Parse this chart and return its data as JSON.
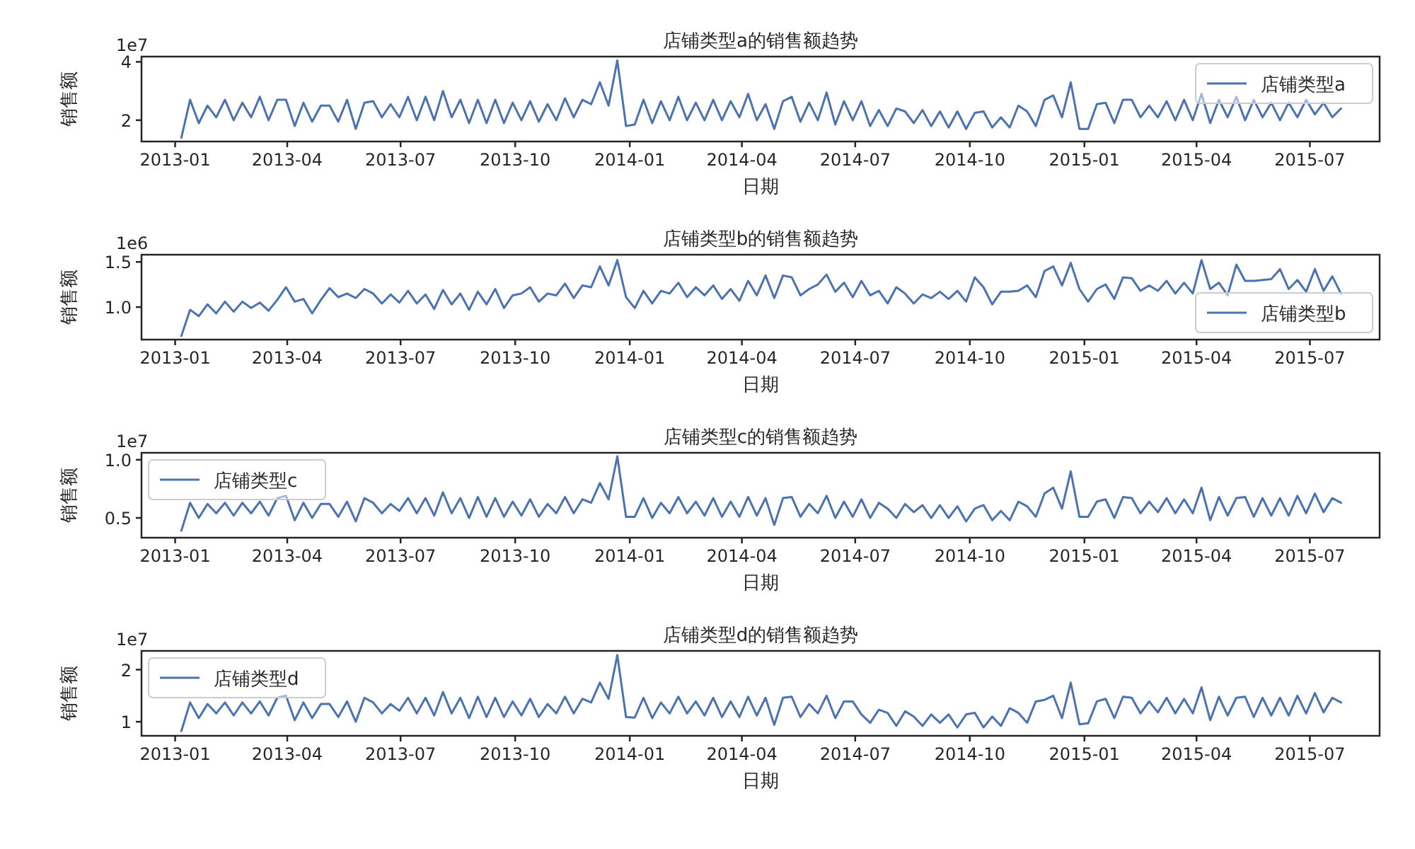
{
  "chart_data": [
    {
      "type": "line",
      "title": "店铺类型a的销售额趋势",
      "xlabel": "日期",
      "ylabel": "销售额",
      "annotations": [
        "1e7"
      ],
      "legend": "top right",
      "x": [
        "2013-01-06",
        "2013-01-13",
        "2013-01-20",
        "2013-01-27",
        "2013-02-03",
        "2013-02-10",
        "2013-02-17",
        "2013-02-24",
        "2013-03-03",
        "2013-03-10",
        "2013-03-17",
        "2013-03-24",
        "2013-03-31",
        "2013-04-07",
        "2013-04-14",
        "2013-04-21",
        "2013-04-28",
        "2013-05-05",
        "2013-05-12",
        "2013-05-19",
        "2013-05-26",
        "2013-06-02",
        "2013-06-09",
        "2013-06-16",
        "2013-06-23",
        "2013-06-30",
        "2013-07-07",
        "2013-07-14",
        "2013-07-21",
        "2013-07-28",
        "2013-08-04",
        "2013-08-11",
        "2013-08-18",
        "2013-08-25",
        "2013-09-01",
        "2013-09-08",
        "2013-09-15",
        "2013-09-22",
        "2013-09-29",
        "2013-10-06",
        "2013-10-13",
        "2013-10-20",
        "2013-10-27",
        "2013-11-03",
        "2013-11-10",
        "2013-11-17",
        "2013-11-24",
        "2013-12-01",
        "2013-12-08",
        "2013-12-15",
        "2013-12-22",
        "2013-12-29",
        "2014-01-05",
        "2014-01-12",
        "2014-01-19",
        "2014-01-26",
        "2014-02-02",
        "2014-02-09",
        "2014-02-16",
        "2014-02-23",
        "2014-03-02",
        "2014-03-09",
        "2014-03-16",
        "2014-03-23",
        "2014-03-30",
        "2014-04-06",
        "2014-04-13",
        "2014-04-20",
        "2014-04-27",
        "2014-05-04",
        "2014-05-11",
        "2014-05-18",
        "2014-05-25",
        "2014-06-01",
        "2014-06-08",
        "2014-06-15",
        "2014-06-22",
        "2014-06-29",
        "2014-07-06",
        "2014-07-13",
        "2014-07-20",
        "2014-07-27",
        "2014-08-03",
        "2014-08-10",
        "2014-08-17",
        "2014-08-24",
        "2014-08-31",
        "2014-09-07",
        "2014-09-14",
        "2014-09-21",
        "2014-09-28",
        "2014-10-05",
        "2014-10-12",
        "2014-10-19",
        "2014-10-26",
        "2014-11-02",
        "2014-11-09",
        "2014-11-16",
        "2014-11-23",
        "2014-11-30",
        "2014-12-07",
        "2014-12-14",
        "2014-12-21",
        "2014-12-28",
        "2015-01-04",
        "2015-01-11",
        "2015-01-18",
        "2015-01-25",
        "2015-02-01",
        "2015-02-08",
        "2015-02-15",
        "2015-02-22",
        "2015-03-01",
        "2015-03-08",
        "2015-03-15",
        "2015-03-22",
        "2015-03-29",
        "2015-04-05",
        "2015-04-12",
        "2015-04-19",
        "2015-04-26",
        "2015-05-03",
        "2015-05-10",
        "2015-05-17",
        "2015-05-24",
        "2015-05-31",
        "2015-06-07",
        "2015-06-14",
        "2015-06-21",
        "2015-06-28",
        "2015-07-05",
        "2015-07-12",
        "2015-07-19",
        "2015-07-26"
      ],
      "xlim": [
        "2012-12-05",
        "2015-08-26"
      ],
      "xticks": [
        "2013-01",
        "2013-04",
        "2013-07",
        "2013-10",
        "2014-01",
        "2014-04",
        "2014-07",
        "2014-10",
        "2015-01",
        "2015-04",
        "2015-07"
      ],
      "ylim": [
        1.27,
        4.18
      ],
      "yticks": [
        2,
        4
      ],
      "series": [
        {
          "name": "店铺类型a",
          "color": "#4c72b0",
          "values": [
            1.4,
            2.7,
            1.9,
            2.5,
            2.1,
            2.7,
            2.0,
            2.6,
            2.1,
            2.8,
            2.0,
            2.7,
            2.7,
            1.8,
            2.6,
            1.95,
            2.5,
            2.5,
            1.95,
            2.7,
            1.7,
            2.6,
            2.65,
            2.1,
            2.55,
            2.1,
            2.8,
            2.0,
            2.8,
            2.0,
            3.0,
            2.1,
            2.7,
            1.9,
            2.7,
            1.9,
            2.7,
            1.9,
            2.6,
            2.0,
            2.65,
            1.95,
            2.55,
            2.0,
            2.75,
            2.1,
            2.7,
            2.55,
            3.3,
            2.5,
            4.05,
            1.8,
            1.85,
            2.7,
            1.9,
            2.65,
            2.0,
            2.8,
            2.0,
            2.6,
            2.0,
            2.7,
            2.0,
            2.65,
            2.1,
            2.9,
            2.0,
            2.55,
            1.7,
            2.65,
            2.8,
            1.95,
            2.6,
            2.0,
            2.95,
            1.85,
            2.65,
            2.0,
            2.65,
            1.8,
            2.35,
            1.8,
            2.4,
            2.3,
            1.9,
            2.35,
            1.8,
            2.3,
            1.75,
            2.3,
            1.7,
            2.25,
            2.3,
            1.75,
            2.1,
            1.75,
            2.5,
            2.3,
            1.8,
            2.7,
            2.85,
            2.1,
            3.3,
            1.7,
            1.7,
            2.55,
            2.6,
            1.9,
            2.7,
            2.7,
            2.1,
            2.5,
            2.1,
            2.65,
            2.0,
            2.7,
            2.0,
            2.9,
            1.9,
            2.7,
            2.1,
            2.8,
            2.0,
            2.7,
            2.1,
            2.6,
            2.0,
            2.6,
            2.1,
            2.7,
            2.2,
            2.6,
            2.1,
            2.4
          ]
        }
      ]
    },
    {
      "type": "line",
      "title": "店铺类型b的销售额趋势",
      "xlabel": "日期",
      "ylabel": "销售额",
      "annotations": [
        "1e6"
      ],
      "legend": "bottom right",
      "x": [
        "2013-01-06",
        "2013-01-13",
        "2013-01-20",
        "2013-01-27",
        "2013-02-03",
        "2013-02-10",
        "2013-02-17",
        "2013-02-24",
        "2013-03-03",
        "2013-03-10",
        "2013-03-17",
        "2013-03-24",
        "2013-03-31",
        "2013-04-07",
        "2013-04-14",
        "2013-04-21",
        "2013-04-28",
        "2013-05-05",
        "2013-05-12",
        "2013-05-19",
        "2013-05-26",
        "2013-06-02",
        "2013-06-09",
        "2013-06-16",
        "2013-06-23",
        "2013-06-30",
        "2013-07-07",
        "2013-07-14",
        "2013-07-21",
        "2013-07-28",
        "2013-08-04",
        "2013-08-11",
        "2013-08-18",
        "2013-08-25",
        "2013-09-01",
        "2013-09-08",
        "2013-09-15",
        "2013-09-22",
        "2013-09-29",
        "2013-10-06",
        "2013-10-13",
        "2013-10-20",
        "2013-10-27",
        "2013-11-03",
        "2013-11-10",
        "2013-11-17",
        "2013-11-24",
        "2013-12-01",
        "2013-12-08",
        "2013-12-15",
        "2013-12-22",
        "2013-12-29",
        "2014-01-05",
        "2014-01-12",
        "2014-01-19",
        "2014-01-26",
        "2014-02-02",
        "2014-02-09",
        "2014-02-16",
        "2014-02-23",
        "2014-03-02",
        "2014-03-09",
        "2014-03-16",
        "2014-03-23",
        "2014-03-30",
        "2014-04-06",
        "2014-04-13",
        "2014-04-20",
        "2014-04-27",
        "2014-05-04",
        "2014-05-11",
        "2014-05-18",
        "2014-05-25",
        "2014-06-01",
        "2014-06-08",
        "2014-06-15",
        "2014-06-22",
        "2014-06-29",
        "2014-07-06",
        "2014-07-13",
        "2014-07-20",
        "2014-07-27",
        "2014-08-03",
        "2014-08-10",
        "2014-08-17",
        "2014-08-24",
        "2014-08-31",
        "2014-09-07",
        "2014-09-14",
        "2014-09-21",
        "2014-09-28",
        "2014-10-05",
        "2014-10-12",
        "2014-10-19",
        "2014-10-26",
        "2014-11-02",
        "2014-11-09",
        "2014-11-16",
        "2014-11-23",
        "2014-11-30",
        "2014-12-07",
        "2014-12-14",
        "2014-12-21",
        "2014-12-28",
        "2015-01-04",
        "2015-01-11",
        "2015-01-18",
        "2015-01-25",
        "2015-02-01",
        "2015-02-08",
        "2015-02-15",
        "2015-02-22",
        "2015-03-01",
        "2015-03-08",
        "2015-03-15",
        "2015-03-22",
        "2015-03-29",
        "2015-04-05",
        "2015-04-12",
        "2015-04-19",
        "2015-04-26",
        "2015-05-03",
        "2015-05-10",
        "2015-05-17",
        "2015-05-24",
        "2015-05-31",
        "2015-06-07",
        "2015-06-14",
        "2015-06-21",
        "2015-06-28",
        "2015-07-05",
        "2015-07-12",
        "2015-07-19",
        "2015-07-26"
      ],
      "xlim": [
        "2012-12-05",
        "2015-08-26"
      ],
      "xticks": [
        "2013-01",
        "2013-04",
        "2013-07",
        "2013-10",
        "2014-01",
        "2014-04",
        "2014-07",
        "2014-10",
        "2015-01",
        "2015-04",
        "2015-07"
      ],
      "ylim": [
        0.64,
        1.58
      ],
      "yticks": [
        {
          "value": 1,
          "label": "1.0"
        },
        1.5
      ],
      "series": [
        {
          "name": "店铺类型b",
          "color": "#4c72b0",
          "values": [
            0.68,
            0.97,
            0.9,
            1.03,
            0.93,
            1.06,
            0.95,
            1.06,
            0.99,
            1.05,
            0.96,
            1.08,
            1.22,
            1.06,
            1.09,
            0.93,
            1.08,
            1.21,
            1.11,
            1.15,
            1.1,
            1.2,
            1.15,
            1.04,
            1.14,
            1.05,
            1.18,
            1.04,
            1.14,
            0.98,
            1.19,
            1.03,
            1.15,
            0.97,
            1.17,
            1.03,
            1.2,
            0.99,
            1.13,
            1.15,
            1.22,
            1.06,
            1.15,
            1.13,
            1.26,
            1.1,
            1.24,
            1.22,
            1.45,
            1.24,
            1.52,
            1.11,
            0.99,
            1.18,
            1.04,
            1.18,
            1.15,
            1.27,
            1.11,
            1.22,
            1.13,
            1.24,
            1.09,
            1.2,
            1.07,
            1.29,
            1.13,
            1.35,
            1.1,
            1.35,
            1.33,
            1.13,
            1.2,
            1.25,
            1.36,
            1.17,
            1.27,
            1.11,
            1.29,
            1.13,
            1.18,
            1.04,
            1.22,
            1.15,
            1.04,
            1.14,
            1.1,
            1.17,
            1.09,
            1.18,
            1.06,
            1.33,
            1.22,
            1.03,
            1.17,
            1.17,
            1.18,
            1.24,
            1.11,
            1.4,
            1.45,
            1.24,
            1.49,
            1.2,
            1.06,
            1.2,
            1.25,
            1.09,
            1.33,
            1.32,
            1.18,
            1.24,
            1.18,
            1.29,
            1.15,
            1.27,
            1.15,
            1.52,
            1.2,
            1.27,
            1.13,
            1.47,
            1.29,
            1.29,
            1.3,
            1.31,
            1.42,
            1.2,
            1.3,
            1.17,
            1.42,
            1.18,
            1.34,
            1.15
          ]
        }
      ]
    },
    {
      "type": "line",
      "title": "店铺类型c的销售额趋势",
      "xlabel": "日期",
      "ylabel": "销售额",
      "annotations": [
        "1e7"
      ],
      "legend": "top left",
      "x": [
        "2013-01-06",
        "2013-01-13",
        "2013-01-20",
        "2013-01-27",
        "2013-02-03",
        "2013-02-10",
        "2013-02-17",
        "2013-02-24",
        "2013-03-03",
        "2013-03-10",
        "2013-03-17",
        "2013-03-24",
        "2013-03-31",
        "2013-04-07",
        "2013-04-14",
        "2013-04-21",
        "2013-04-28",
        "2013-05-05",
        "2013-05-12",
        "2013-05-19",
        "2013-05-26",
        "2013-06-02",
        "2013-06-09",
        "2013-06-16",
        "2013-06-23",
        "2013-06-30",
        "2013-07-07",
        "2013-07-14",
        "2013-07-21",
        "2013-07-28",
        "2013-08-04",
        "2013-08-11",
        "2013-08-18",
        "2013-08-25",
        "2013-09-01",
        "2013-09-08",
        "2013-09-15",
        "2013-09-22",
        "2013-09-29",
        "2013-10-06",
        "2013-10-13",
        "2013-10-20",
        "2013-10-27",
        "2013-11-03",
        "2013-11-10",
        "2013-11-17",
        "2013-11-24",
        "2013-12-01",
        "2013-12-08",
        "2013-12-15",
        "2013-12-22",
        "2013-12-29",
        "2014-01-05",
        "2014-01-12",
        "2014-01-19",
        "2014-01-26",
        "2014-02-02",
        "2014-02-09",
        "2014-02-16",
        "2014-02-23",
        "2014-03-02",
        "2014-03-09",
        "2014-03-16",
        "2014-03-23",
        "2014-03-30",
        "2014-04-06",
        "2014-04-13",
        "2014-04-20",
        "2014-04-27",
        "2014-05-04",
        "2014-05-11",
        "2014-05-18",
        "2014-05-25",
        "2014-06-01",
        "2014-06-08",
        "2014-06-15",
        "2014-06-22",
        "2014-06-29",
        "2014-07-06",
        "2014-07-13",
        "2014-07-20",
        "2014-07-27",
        "2014-08-03",
        "2014-08-10",
        "2014-08-17",
        "2014-08-24",
        "2014-08-31",
        "2014-09-07",
        "2014-09-14",
        "2014-09-21",
        "2014-09-28",
        "2014-10-05",
        "2014-10-12",
        "2014-10-19",
        "2014-10-26",
        "2014-11-02",
        "2014-11-09",
        "2014-11-16",
        "2014-11-23",
        "2014-11-30",
        "2014-12-07",
        "2014-12-14",
        "2014-12-21",
        "2014-12-28",
        "2015-01-04",
        "2015-01-11",
        "2015-01-18",
        "2015-01-25",
        "2015-02-01",
        "2015-02-08",
        "2015-02-15",
        "2015-02-22",
        "2015-03-01",
        "2015-03-08",
        "2015-03-15",
        "2015-03-22",
        "2015-03-29",
        "2015-04-05",
        "2015-04-12",
        "2015-04-19",
        "2015-04-26",
        "2015-05-03",
        "2015-05-10",
        "2015-05-17",
        "2015-05-24",
        "2015-05-31",
        "2015-06-07",
        "2015-06-14",
        "2015-06-21",
        "2015-06-28",
        "2015-07-05",
        "2015-07-12",
        "2015-07-19",
        "2015-07-26"
      ],
      "xlim": [
        "2012-12-05",
        "2015-08-26"
      ],
      "xticks": [
        "2013-01",
        "2013-04",
        "2013-07",
        "2013-10",
        "2014-01",
        "2014-04",
        "2014-07",
        "2014-10",
        "2015-01",
        "2015-04",
        "2015-07"
      ],
      "ylim": [
        0.33,
        1.06
      ],
      "yticks": [
        0.5,
        {
          "value": 1,
          "label": "1.0"
        }
      ],
      "series": [
        {
          "name": "店铺类型c",
          "color": "#4c72b0",
          "values": [
            0.39,
            0.63,
            0.5,
            0.62,
            0.54,
            0.63,
            0.52,
            0.63,
            0.54,
            0.64,
            0.52,
            0.67,
            0.69,
            0.48,
            0.63,
            0.5,
            0.62,
            0.62,
            0.51,
            0.64,
            0.47,
            0.67,
            0.63,
            0.54,
            0.62,
            0.56,
            0.67,
            0.54,
            0.67,
            0.52,
            0.72,
            0.54,
            0.67,
            0.5,
            0.68,
            0.51,
            0.67,
            0.51,
            0.64,
            0.52,
            0.66,
            0.51,
            0.62,
            0.54,
            0.68,
            0.54,
            0.66,
            0.63,
            0.8,
            0.66,
            1.03,
            0.51,
            0.51,
            0.67,
            0.5,
            0.63,
            0.54,
            0.68,
            0.54,
            0.64,
            0.52,
            0.67,
            0.51,
            0.64,
            0.51,
            0.68,
            0.52,
            0.67,
            0.44,
            0.67,
            0.68,
            0.51,
            0.62,
            0.54,
            0.69,
            0.5,
            0.64,
            0.51,
            0.66,
            0.5,
            0.63,
            0.58,
            0.5,
            0.62,
            0.55,
            0.61,
            0.5,
            0.61,
            0.5,
            0.6,
            0.47,
            0.58,
            0.61,
            0.48,
            0.56,
            0.48,
            0.64,
            0.6,
            0.51,
            0.71,
            0.76,
            0.58,
            0.9,
            0.51,
            0.51,
            0.64,
            0.66,
            0.5,
            0.68,
            0.67,
            0.54,
            0.64,
            0.55,
            0.67,
            0.54,
            0.66,
            0.54,
            0.76,
            0.48,
            0.68,
            0.52,
            0.67,
            0.68,
            0.51,
            0.67,
            0.52,
            0.67,
            0.52,
            0.69,
            0.54,
            0.71,
            0.55,
            0.67,
            0.63
          ]
        }
      ]
    },
    {
      "type": "line",
      "title": "店铺类型d的销售额趋势",
      "xlabel": "日期",
      "ylabel": "销售额",
      "annotations": [
        "1e7"
      ],
      "legend": "top left",
      "x": [
        "2013-01-06",
        "2013-01-13",
        "2013-01-20",
        "2013-01-27",
        "2013-02-03",
        "2013-02-10",
        "2013-02-17",
        "2013-02-24",
        "2013-03-03",
        "2013-03-10",
        "2013-03-17",
        "2013-03-24",
        "2013-03-31",
        "2013-04-07",
        "2013-04-14",
        "2013-04-21",
        "2013-04-28",
        "2013-05-05",
        "2013-05-12",
        "2013-05-19",
        "2013-05-26",
        "2013-06-02",
        "2013-06-09",
        "2013-06-16",
        "2013-06-23",
        "2013-06-30",
        "2013-07-07",
        "2013-07-14",
        "2013-07-21",
        "2013-07-28",
        "2013-08-04",
        "2013-08-11",
        "2013-08-18",
        "2013-08-25",
        "2013-09-01",
        "2013-09-08",
        "2013-09-15",
        "2013-09-22",
        "2013-09-29",
        "2013-10-06",
        "2013-10-13",
        "2013-10-20",
        "2013-10-27",
        "2013-11-03",
        "2013-11-10",
        "2013-11-17",
        "2013-11-24",
        "2013-12-01",
        "2013-12-08",
        "2013-12-15",
        "2013-12-22",
        "2013-12-29",
        "2014-01-05",
        "2014-01-12",
        "2014-01-19",
        "2014-01-26",
        "2014-02-02",
        "2014-02-09",
        "2014-02-16",
        "2014-02-23",
        "2014-03-02",
        "2014-03-09",
        "2014-03-16",
        "2014-03-23",
        "2014-03-30",
        "2014-04-06",
        "2014-04-13",
        "2014-04-20",
        "2014-04-27",
        "2014-05-04",
        "2014-05-11",
        "2014-05-18",
        "2014-05-25",
        "2014-06-01",
        "2014-06-08",
        "2014-06-15",
        "2014-06-22",
        "2014-06-29",
        "2014-07-06",
        "2014-07-13",
        "2014-07-20",
        "2014-07-27",
        "2014-08-03",
        "2014-08-10",
        "2014-08-17",
        "2014-08-24",
        "2014-08-31",
        "2014-09-07",
        "2014-09-14",
        "2014-09-21",
        "2014-09-28",
        "2014-10-05",
        "2014-10-12",
        "2014-10-19",
        "2014-10-26",
        "2014-11-02",
        "2014-11-09",
        "2014-11-16",
        "2014-11-23",
        "2014-11-30",
        "2014-12-07",
        "2014-12-14",
        "2014-12-21",
        "2014-12-28",
        "2015-01-04",
        "2015-01-11",
        "2015-01-18",
        "2015-01-25",
        "2015-02-01",
        "2015-02-08",
        "2015-02-15",
        "2015-02-22",
        "2015-03-01",
        "2015-03-08",
        "2015-03-15",
        "2015-03-22",
        "2015-03-29",
        "2015-04-05",
        "2015-04-12",
        "2015-04-19",
        "2015-04-26",
        "2015-05-03",
        "2015-05-10",
        "2015-05-17",
        "2015-05-24",
        "2015-05-31",
        "2015-06-07",
        "2015-06-14",
        "2015-06-21",
        "2015-06-28",
        "2015-07-05",
        "2015-07-12",
        "2015-07-19",
        "2015-07-26"
      ],
      "xlim": [
        "2012-12-05",
        "2015-08-26"
      ],
      "xticks": [
        "2013-01",
        "2013-04",
        "2013-07",
        "2013-10",
        "2014-01",
        "2014-04",
        "2014-07",
        "2014-10",
        "2015-01",
        "2015-04",
        "2015-07"
      ],
      "ylim": [
        0.73,
        2.36
      ],
      "yticks": [
        1,
        2
      ],
      "series": [
        {
          "name": "店铺类型d",
          "color": "#4c72b0",
          "values": [
            0.82,
            1.37,
            1.07,
            1.34,
            1.16,
            1.37,
            1.12,
            1.37,
            1.16,
            1.39,
            1.12,
            1.46,
            1.5,
            1.03,
            1.37,
            1.07,
            1.34,
            1.34,
            1.09,
            1.39,
            1.0,
            1.46,
            1.37,
            1.16,
            1.34,
            1.21,
            1.46,
            1.16,
            1.46,
            1.12,
            1.57,
            1.16,
            1.46,
            1.07,
            1.48,
            1.09,
            1.46,
            1.09,
            1.39,
            1.12,
            1.44,
            1.09,
            1.34,
            1.16,
            1.48,
            1.16,
            1.44,
            1.37,
            1.75,
            1.44,
            2.28,
            1.09,
            1.08,
            1.46,
            1.07,
            1.37,
            1.16,
            1.48,
            1.16,
            1.39,
            1.12,
            1.46,
            1.09,
            1.39,
            1.09,
            1.48,
            1.12,
            1.46,
            0.94,
            1.46,
            1.48,
            1.09,
            1.34,
            1.16,
            1.5,
            1.07,
            1.39,
            1.39,
            1.14,
            0.98,
            1.23,
            1.17,
            0.92,
            1.2,
            1.1,
            0.92,
            1.14,
            0.98,
            1.14,
            0.89,
            1.14,
            1.17,
            0.89,
            1.1,
            0.92,
            1.26,
            1.17,
            0.98,
            1.39,
            1.42,
            1.5,
            1.07,
            1.75,
            0.95,
            0.97,
            1.39,
            1.44,
            1.07,
            1.48,
            1.46,
            1.16,
            1.39,
            1.18,
            1.46,
            1.16,
            1.44,
            1.16,
            1.66,
            1.03,
            1.48,
            1.12,
            1.46,
            1.48,
            1.09,
            1.46,
            1.12,
            1.46,
            1.12,
            1.5,
            1.16,
            1.55,
            1.18,
            1.46,
            1.37
          ]
        }
      ]
    }
  ]
}
